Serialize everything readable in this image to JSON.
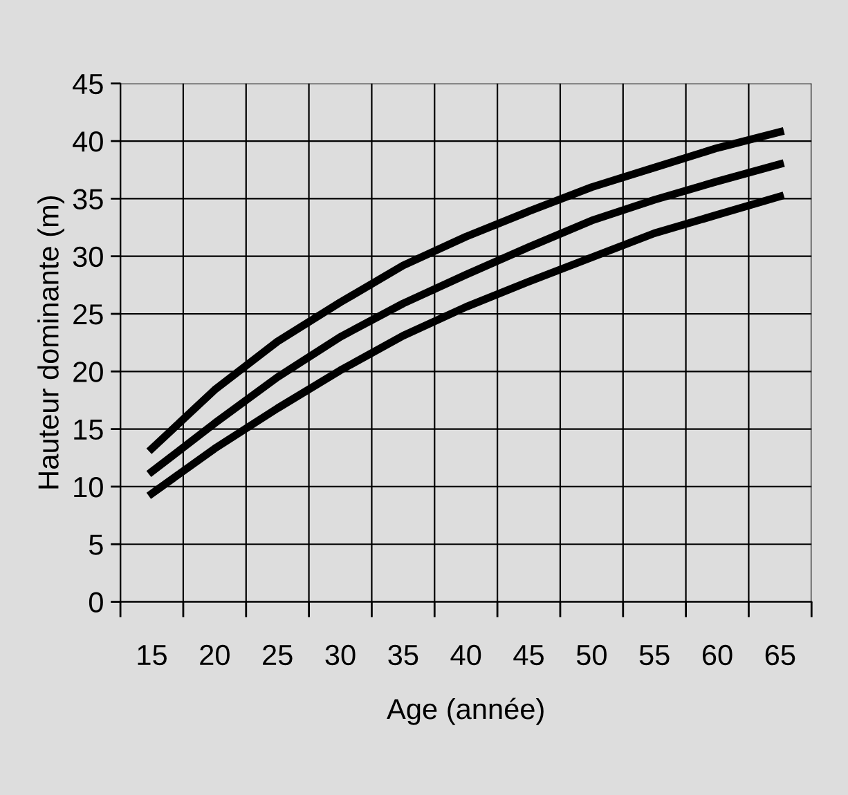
{
  "chart_data": {
    "type": "line",
    "xlabel": "Age (année)",
    "ylabel": "Hauteur dominante (m)",
    "categories": [
      "15",
      "20",
      "25",
      "30",
      "35",
      "40",
      "45",
      "50",
      "55",
      "60",
      "65"
    ],
    "series": [
      {
        "color": "#000000",
        "values": [
          13.3,
          18.4,
          22.6,
          26.0,
          29.2,
          31.7,
          33.9,
          36.0,
          37.7,
          39.4,
          40.8
        ]
      },
      {
        "color": "#000000",
        "values": [
          11.3,
          15.5,
          19.5,
          23.0,
          25.9,
          28.4,
          30.8,
          33.1,
          34.9,
          36.5,
          38.0
        ]
      },
      {
        "color": "#000000",
        "values": [
          9.4,
          13.3,
          16.8,
          20.1,
          23.1,
          25.6,
          27.8,
          29.9,
          32.0,
          33.6,
          35.2
        ]
      }
    ],
    "ylim": [
      0,
      45
    ],
    "yticks": [
      0,
      5,
      10,
      15,
      20,
      25,
      30,
      35,
      40,
      45
    ],
    "grid": true,
    "marker": "none",
    "line_style": "solid"
  }
}
